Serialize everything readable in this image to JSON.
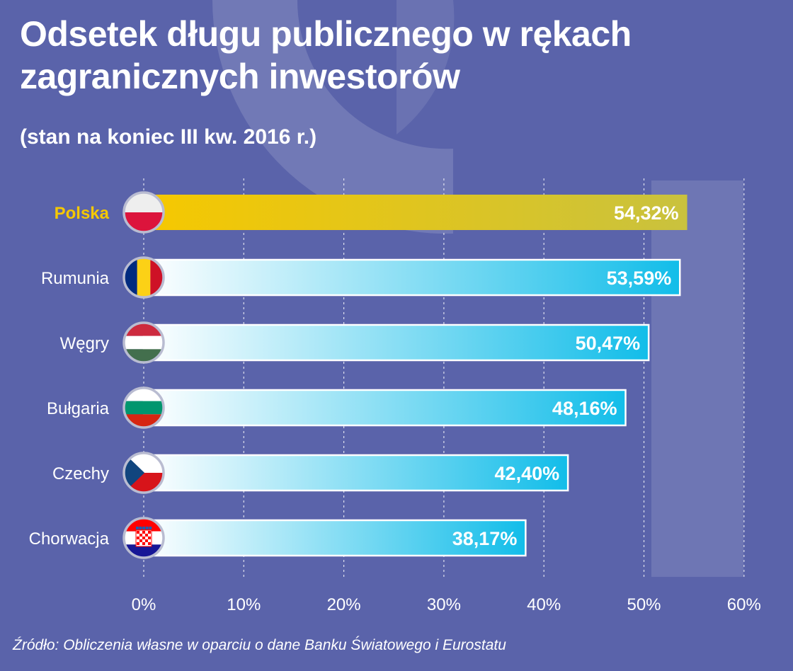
{
  "title": "Odsetek długu publicznego w rękach zagranicznych inwestorów",
  "subtitle": "(stan na koniec III kw. 2016 r.)",
  "source": "Źródło: Obliczenia własne w oparciu o dane Banku Światowego i Eurostatu",
  "colors": {
    "background": "#5a63aa",
    "highlight_bar_start": "#f6c800",
    "highlight_bar_end": "#c9c23e",
    "highlight_label": "#f5c800",
    "bar_start": "#ffffff",
    "bar_end": "#12bde9",
    "grid": "#ffffff"
  },
  "chart_data": {
    "type": "bar",
    "orientation": "horizontal",
    "categories": [
      "Polska",
      "Rumunia",
      "Węgry",
      "Bułgaria",
      "Czechy",
      "Chorwacja"
    ],
    "values": [
      54.32,
      53.59,
      50.47,
      48.16,
      42.4,
      38.17
    ],
    "value_labels": [
      "54,32%",
      "53,59%",
      "50,47%",
      "48,16%",
      "42,40%",
      "38,17%"
    ],
    "highlighted_category": "Polska",
    "flags": [
      "poland-flag",
      "romania-flag",
      "hungary-flag",
      "bulgaria-flag",
      "czech-flag",
      "croatia-flag"
    ],
    "xlim": [
      0,
      60
    ],
    "xticks": [
      0,
      10,
      20,
      30,
      40,
      50,
      60
    ],
    "xtick_labels": [
      "0%",
      "10%",
      "20%",
      "30%",
      "40%",
      "50%",
      "60%"
    ],
    "grid": "vertical dashed"
  }
}
